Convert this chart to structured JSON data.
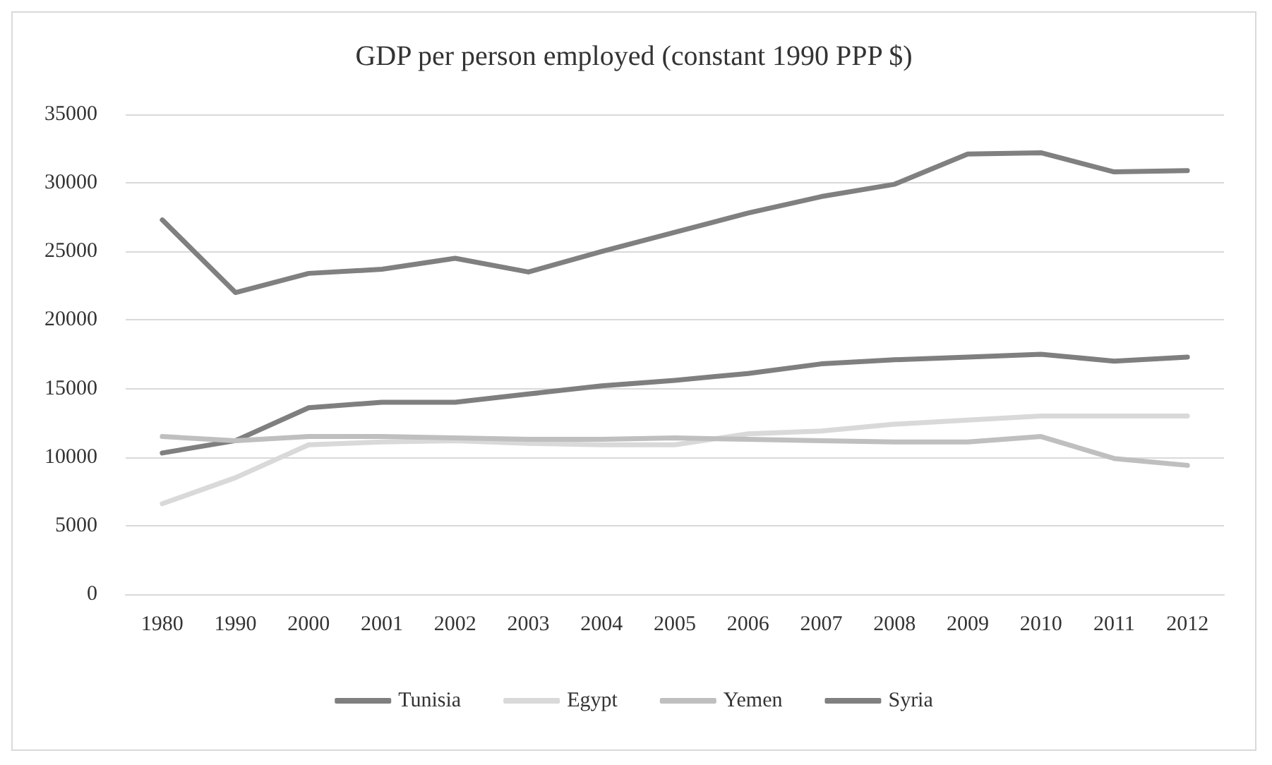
{
  "chart_data": {
    "type": "line",
    "title": "GDP per person employed (constant 1990 PPP $)",
    "categories": [
      "1980",
      "1990",
      "2000",
      "2001",
      "2002",
      "2003",
      "2004",
      "2005",
      "2006",
      "2007",
      "2008",
      "2009",
      "2010",
      "2011",
      "2012"
    ],
    "series": [
      {
        "name": "Tunisia",
        "color": "#7f7f7f",
        "values": [
          10300,
          11200,
          13600,
          14000,
          14000,
          14600,
          15200,
          15600,
          16100,
          16800,
          17100,
          17300,
          17500,
          17000,
          17300
        ]
      },
      {
        "name": "Egypt",
        "color": "#d9d9d9",
        "values": [
          6600,
          8500,
          10900,
          11100,
          11200,
          11000,
          10900,
          10900,
          11700,
          11900,
          12400,
          12700,
          13000,
          13000,
          13000
        ]
      },
      {
        "name": "Yemen",
        "color": "#bfbfbf",
        "values": [
          11500,
          11200,
          11500,
          11500,
          11400,
          11300,
          11300,
          11400,
          11300,
          11200,
          11100,
          11100,
          11500,
          9900,
          9400
        ]
      },
      {
        "name": "Syria",
        "color": "#808080",
        "values": [
          27300,
          22000,
          23400,
          23700,
          24500,
          23500,
          25000,
          26400,
          27800,
          29000,
          29900,
          32100,
          32200,
          30800,
          30900
        ]
      }
    ],
    "ylim": [
      0,
      35000
    ],
    "yticks": [
      0,
      5000,
      10000,
      15000,
      20000,
      25000,
      30000,
      35000
    ],
    "grid": "y",
    "legend": "bottom",
    "marker": "none",
    "line_style": "solid"
  }
}
